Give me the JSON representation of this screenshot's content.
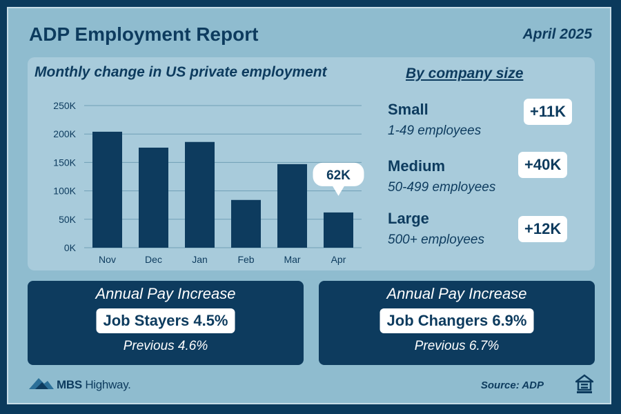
{
  "header": {
    "title": "ADP Employment Report",
    "date": "April 2025"
  },
  "chart_data": {
    "type": "bar",
    "title": "Monthly change in US private employment",
    "categories": [
      "Nov",
      "Dec",
      "Jan",
      "Feb",
      "Mar",
      "Apr"
    ],
    "values": [
      204000,
      176000,
      186000,
      84000,
      147000,
      62000
    ],
    "ylim": [
      0,
      250000
    ],
    "yticks": [
      0,
      50000,
      100000,
      150000,
      200000,
      250000
    ],
    "ytick_labels": [
      "0K",
      "50K",
      "100K",
      "150K",
      "200K",
      "250K"
    ],
    "grid": true,
    "bar_color": "#0d3b5e",
    "annotation": {
      "category": "Apr",
      "text": "62K"
    }
  },
  "company_size": {
    "title": "By company size",
    "items": [
      {
        "name": "Small",
        "desc": "1-49 employees",
        "value": "+11K"
      },
      {
        "name": "Medium",
        "desc": "50-499 employees",
        "value": "+40K"
      },
      {
        "name": "Large",
        "desc": "500+ employees",
        "value": "+12K"
      }
    ]
  },
  "pay": [
    {
      "label": "Annual Pay Increase",
      "pill": "Job Stayers 4.5%",
      "previous": "Previous 4.6%"
    },
    {
      "label": "Annual Pay Increase",
      "pill": "Job Changers 6.9%",
      "previous": "Previous 6.7%"
    }
  ],
  "footer": {
    "logo_brand": "MBS",
    "logo_rest": " Highway.",
    "source": "Source: ADP"
  },
  "colors": {
    "navy": "#0d3b5e",
    "frame_bg": "#8fbccf",
    "panel_bg": "#a8cbdb",
    "white": "#ffffff"
  }
}
